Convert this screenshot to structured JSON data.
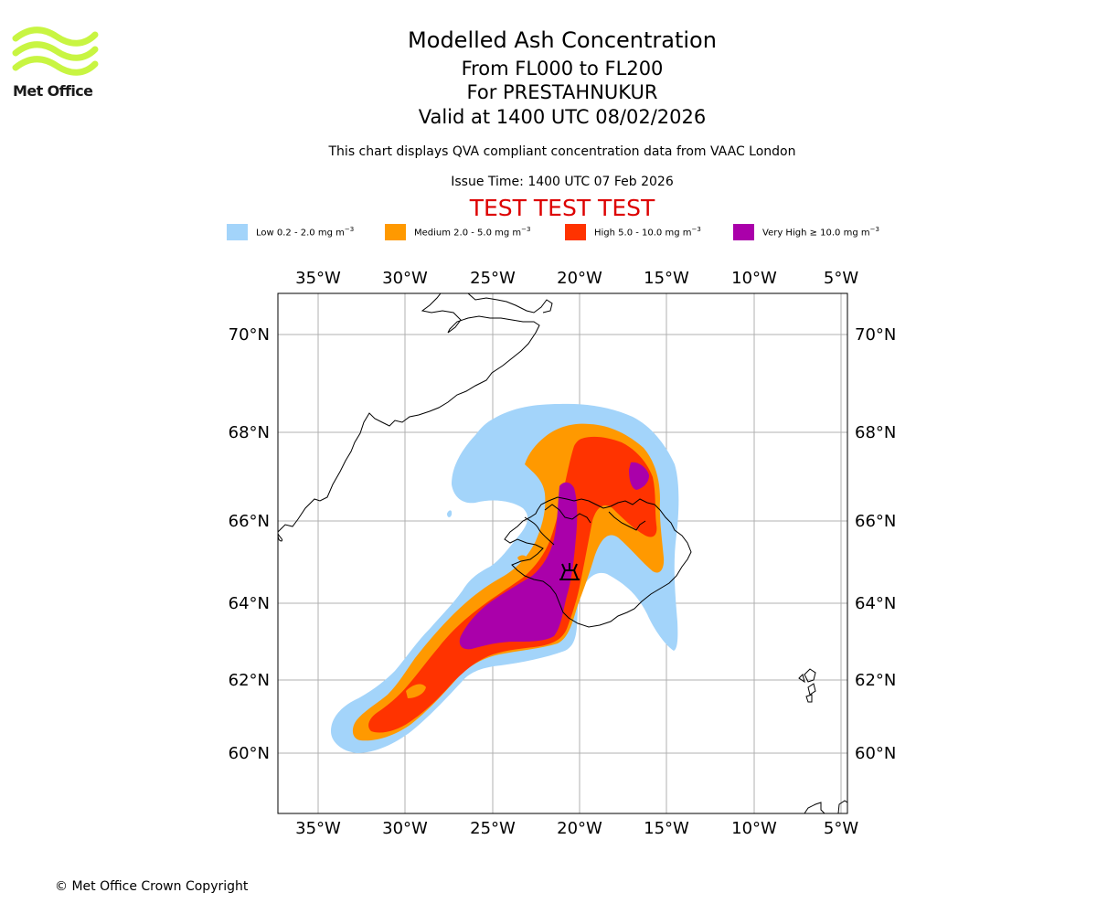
{
  "header": {
    "title": "Modelled Ash Concentration",
    "level_range": "From FL000 to FL200",
    "volcano": "For PRESTAHNUKUR",
    "valid_time": "Valid at 1400 UTC 08/02/2026",
    "description": "This chart displays QVA compliant concentration data from VAAC London",
    "issue_time": "Issue Time: 1400 UTC 07 Feb 2026",
    "test_banner": "TEST TEST TEST",
    "test_color": "#dd0000"
  },
  "logo": {
    "text": "Met Office",
    "color": "#c8f542"
  },
  "legend": [
    {
      "label": "Low 0.2 - 2.0 mg m",
      "unit_exp": "−3",
      "color": "#a3d4fa"
    },
    {
      "label": "Medium 2.0 - 5.0 mg m",
      "unit_exp": "−3",
      "color": "#ff9900"
    },
    {
      "label": "High 5.0 - 10.0 mg m",
      "unit_exp": "−3",
      "color": "#ff3300"
    },
    {
      "label": "Very High  ≥  10.0 mg m",
      "unit_exp": "−3",
      "color": "#aa00aa"
    }
  ],
  "map": {
    "lon_labels": [
      "35°W",
      "30°W",
      "25°W",
      "20°W",
      "15°W",
      "10°W",
      "5°W"
    ],
    "lat_labels": [
      "70°N",
      "68°N",
      "66°N",
      "64°N",
      "62°N",
      "60°N"
    ],
    "volcano_symbol": "volcano-marker"
  },
  "footer": {
    "copyright": "© Met Office Crown Copyright"
  }
}
